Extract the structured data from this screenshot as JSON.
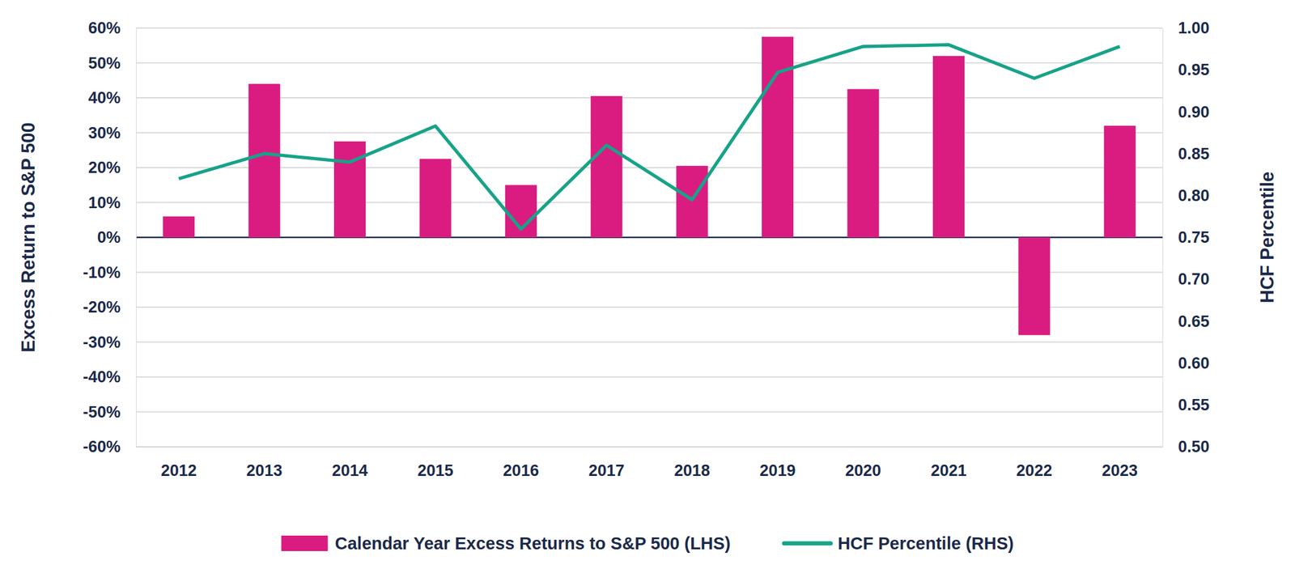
{
  "chart_data": {
    "type": "bar",
    "categories": [
      "2012",
      "2013",
      "2014",
      "2015",
      "2016",
      "2017",
      "2018",
      "2019",
      "2020",
      "2021",
      "2022",
      "2023"
    ],
    "series": [
      {
        "name": "Calendar Year Excess Returns to S&P 500 (LHS)",
        "type": "bar",
        "color": "#da1c80",
        "values": [
          6,
          44,
          27.5,
          22.5,
          15,
          40.5,
          20.5,
          57.5,
          42.5,
          52,
          -28,
          32
        ]
      },
      {
        "name": "HCF Percentile (RHS)",
        "type": "line",
        "axis": "y2",
        "color": "#17a388",
        "values": [
          0.82,
          0.85,
          0.84,
          0.883,
          0.76,
          0.86,
          0.795,
          0.947,
          0.978,
          0.98,
          0.94,
          0.978
        ]
      }
    ],
    "y_label": "Excess Return to S&P 500",
    "y2_label": "HCF Percentile",
    "ylim": [
      -60,
      60
    ],
    "yticks": [
      {
        "value": -60,
        "label": "-60%"
      },
      {
        "value": -50,
        "label": "-50%"
      },
      {
        "value": -40,
        "label": "-40%"
      },
      {
        "value": -30,
        "label": "-30%"
      },
      {
        "value": -20,
        "label": "-20%"
      },
      {
        "value": -10,
        "label": "-10%"
      },
      {
        "value": 0,
        "label": "0%"
      },
      {
        "value": 10,
        "label": "10%"
      },
      {
        "value": 20,
        "label": "20%"
      },
      {
        "value": 30,
        "label": "30%"
      },
      {
        "value": 40,
        "label": "40%"
      },
      {
        "value": 50,
        "label": "50%"
      },
      {
        "value": 60,
        "label": "60%"
      }
    ],
    "y2lim": [
      0.5,
      1
    ],
    "y2ticks": [
      {
        "value": 0.5,
        "label": "0.50"
      },
      0.55,
      {
        "value": 0.6,
        "label": "0.60"
      },
      0.65,
      {
        "value": 0.7,
        "label": "0.70"
      },
      0.75,
      {
        "value": 0.8,
        "label": "0.80"
      },
      0.85,
      {
        "value": 0.9,
        "label": "0.90"
      },
      0.95,
      {
        "value": 1,
        "label": "1.00"
      }
    ],
    "grid": true,
    "legend": "bottom"
  }
}
